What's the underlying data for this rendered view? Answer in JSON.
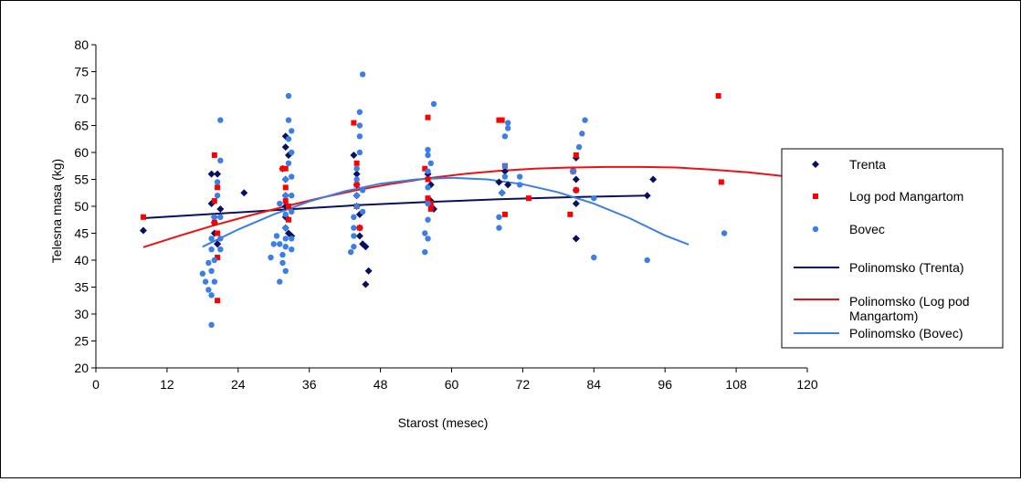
{
  "chart_data": {
    "type": "scatter",
    "xlabel": "Starost (mesec)",
    "ylabel": "Telesna masa (kg)",
    "xlim": [
      0,
      120
    ],
    "ylim": [
      20,
      80
    ],
    "xticks": [
      0,
      12,
      24,
      36,
      48,
      60,
      72,
      84,
      96,
      108,
      120
    ],
    "yticks": [
      20,
      25,
      30,
      35,
      40,
      45,
      50,
      55,
      60,
      65,
      70,
      75,
      80
    ],
    "grid": false,
    "legend_position": "right",
    "series": [
      {
        "name": "Trenta",
        "kind": "points",
        "marker": "diamond",
        "color": "#0a1060",
        "points": [
          [
            8,
            45.5
          ],
          [
            19.5,
            56
          ],
          [
            19.5,
            50.5
          ],
          [
            20,
            48
          ],
          [
            20,
            47
          ],
          [
            20,
            45
          ],
          [
            20.5,
            43
          ],
          [
            20.5,
            56
          ],
          [
            20.5,
            43
          ],
          [
            21,
            49.5
          ],
          [
            25,
            52.5
          ],
          [
            31.5,
            57
          ],
          [
            32,
            63
          ],
          [
            32,
            61
          ],
          [
            32,
            55
          ],
          [
            32,
            52
          ],
          [
            32,
            50
          ],
          [
            32,
            48
          ],
          [
            32,
            46
          ],
          [
            32.5,
            45
          ],
          [
            32.5,
            59.5
          ],
          [
            33,
            44.5
          ],
          [
            43.5,
            59.5
          ],
          [
            44,
            56
          ],
          [
            44,
            54
          ],
          [
            44,
            52
          ],
          [
            44,
            50
          ],
          [
            44.5,
            48.5
          ],
          [
            44.5,
            46
          ],
          [
            44.5,
            44.5
          ],
          [
            45,
            43
          ],
          [
            45.5,
            42.5
          ],
          [
            45.5,
            35.5
          ],
          [
            46,
            38
          ],
          [
            56,
            56
          ],
          [
            56.5,
            54
          ],
          [
            56.5,
            51
          ],
          [
            57,
            49.5
          ],
          [
            68,
            54.5
          ],
          [
            68.5,
            52.5
          ],
          [
            69,
            56.5
          ],
          [
            69.5,
            54
          ],
          [
            80.5,
            56.5
          ],
          [
            81,
            59
          ],
          [
            81,
            55
          ],
          [
            81,
            53
          ],
          [
            81,
            50.5
          ],
          [
            81,
            44
          ],
          [
            81,
            44
          ],
          [
            93,
            52
          ],
          [
            94,
            55
          ]
        ]
      },
      {
        "name": "Log pod Mangartom",
        "kind": "points",
        "marker": "square",
        "color": "#ff0000",
        "points": [
          [
            8,
            48
          ],
          [
            20,
            59.5
          ],
          [
            20,
            51
          ],
          [
            20,
            47
          ],
          [
            20.5,
            45
          ],
          [
            20.5,
            40.5
          ],
          [
            20.5,
            32.5
          ],
          [
            20.5,
            53.5
          ],
          [
            31.5,
            57
          ],
          [
            32,
            57
          ],
          [
            32,
            53.5
          ],
          [
            32,
            51
          ],
          [
            32.5,
            50
          ],
          [
            32.5,
            47.5
          ],
          [
            43.5,
            65.5
          ],
          [
            44,
            58
          ],
          [
            44,
            54
          ],
          [
            44,
            50
          ],
          [
            44.5,
            46
          ],
          [
            55.5,
            57
          ],
          [
            56,
            66.5
          ],
          [
            56,
            55
          ],
          [
            56,
            51.5
          ],
          [
            56.5,
            50.5
          ],
          [
            56.5,
            49.5
          ],
          [
            68,
            66
          ],
          [
            68.5,
            66
          ],
          [
            69,
            57.5
          ],
          [
            69,
            48.5
          ],
          [
            73,
            51.5
          ],
          [
            80,
            48.5
          ],
          [
            80.5,
            56.5
          ],
          [
            81,
            59.5
          ],
          [
            81,
            53
          ],
          [
            105,
            70.5
          ],
          [
            105.5,
            54.5
          ],
          [
            117,
            50.5
          ]
        ]
      },
      {
        "name": "Bovec",
        "kind": "points",
        "marker": "circle",
        "color": "#3a7ee6",
        "points": [
          [
            18,
            37.5
          ],
          [
            18.5,
            36
          ],
          [
            19,
            34.5
          ],
          [
            19,
            39.5
          ],
          [
            19.5,
            28
          ],
          [
            19.5,
            33.5
          ],
          [
            19.5,
            38
          ],
          [
            19.5,
            42
          ],
          [
            19.5,
            44
          ],
          [
            20,
            36
          ],
          [
            20,
            40
          ],
          [
            20,
            48
          ],
          [
            20.5,
            52
          ],
          [
            20.5,
            54.5
          ],
          [
            21,
            66
          ],
          [
            21,
            58.5
          ],
          [
            21,
            48
          ],
          [
            21,
            44
          ],
          [
            21,
            42
          ],
          [
            29.5,
            40.5
          ],
          [
            30,
            43
          ],
          [
            30.5,
            44.5
          ],
          [
            31,
            43
          ],
          [
            31,
            36
          ],
          [
            31,
            50.5
          ],
          [
            31.5,
            39.5
          ],
          [
            31.5,
            41
          ],
          [
            32,
            38
          ],
          [
            32,
            42.5
          ],
          [
            32,
            44
          ],
          [
            32,
            46
          ],
          [
            32,
            48.5
          ],
          [
            32,
            52
          ],
          [
            32,
            55
          ],
          [
            32.5,
            58
          ],
          [
            32.5,
            62.5
          ],
          [
            32.5,
            66
          ],
          [
            32.5,
            70.5
          ],
          [
            33,
            64
          ],
          [
            33,
            60
          ],
          [
            33,
            55.5
          ],
          [
            33,
            52
          ],
          [
            33,
            49
          ],
          [
            33,
            44
          ],
          [
            33,
            42
          ],
          [
            43,
            41.5
          ],
          [
            43.5,
            42.5
          ],
          [
            43.5,
            44.5
          ],
          [
            43.5,
            46
          ],
          [
            43.5,
            48
          ],
          [
            44,
            50
          ],
          [
            44,
            52
          ],
          [
            44,
            55
          ],
          [
            44,
            57
          ],
          [
            44.5,
            60
          ],
          [
            44.5,
            63
          ],
          [
            44.5,
            65
          ],
          [
            44.5,
            67.5
          ],
          [
            45,
            74.5
          ],
          [
            45,
            53
          ],
          [
            45,
            49
          ],
          [
            55.5,
            41.5
          ],
          [
            55.5,
            45
          ],
          [
            56,
            44
          ],
          [
            56,
            47.5
          ],
          [
            56,
            50.5
          ],
          [
            56,
            53.5
          ],
          [
            56,
            56.5
          ],
          [
            56,
            59.5
          ],
          [
            56,
            60.5
          ],
          [
            56.5,
            58
          ],
          [
            57,
            69
          ],
          [
            68,
            46
          ],
          [
            68,
            48
          ],
          [
            68.5,
            52.5
          ],
          [
            69,
            55.5
          ],
          [
            69,
            57.5
          ],
          [
            69,
            63
          ],
          [
            69.5,
            65.5
          ],
          [
            69.5,
            64.5
          ],
          [
            71.5,
            55.5
          ],
          [
            71.5,
            54
          ],
          [
            80.5,
            56.5
          ],
          [
            81.5,
            61
          ],
          [
            82,
            63.5
          ],
          [
            82.5,
            66
          ],
          [
            84,
            40.5
          ],
          [
            84,
            51.5
          ],
          [
            93,
            40
          ],
          [
            106,
            45
          ]
        ]
      },
      {
        "name": "Polinomsko (Trenta)",
        "kind": "trendline",
        "color": "#0a1060",
        "curve": [
          [
            8,
            47.8
          ],
          [
            20,
            48.6
          ],
          [
            32,
            49.4
          ],
          [
            44,
            50.2
          ],
          [
            56,
            50.8
          ],
          [
            68,
            51.3
          ],
          [
            80,
            51.7
          ],
          [
            93,
            52
          ]
        ]
      },
      {
        "name": "Polinomsko (Log pod Mangartom)",
        "kind": "trendline",
        "color": "#ee1111",
        "curve": [
          [
            8,
            42.4
          ],
          [
            14,
            44.5
          ],
          [
            20,
            46.5
          ],
          [
            26,
            48.3
          ],
          [
            32,
            50
          ],
          [
            38,
            51.6
          ],
          [
            44,
            53
          ],
          [
            50,
            54.2
          ],
          [
            56,
            55.2
          ],
          [
            62,
            56
          ],
          [
            68,
            56.6
          ],
          [
            74,
            57
          ],
          [
            80,
            57.2
          ],
          [
            86,
            57.3
          ],
          [
            92,
            57.3
          ],
          [
            98,
            57.2
          ],
          [
            104,
            56.8
          ],
          [
            110,
            56.3
          ],
          [
            117,
            55.5
          ]
        ]
      },
      {
        "name": "Polinomsko (Bovec)",
        "kind": "trendline",
        "color": "#3a7ee6",
        "curve": [
          [
            18,
            42.5
          ],
          [
            24,
            45.7
          ],
          [
            30,
            48.5
          ],
          [
            36,
            50.9
          ],
          [
            42,
            52.8
          ],
          [
            48,
            54.2
          ],
          [
            54,
            55
          ],
          [
            60,
            55.3
          ],
          [
            66,
            55
          ],
          [
            72,
            54.1
          ],
          [
            78,
            52.6
          ],
          [
            84,
            50.5
          ],
          [
            90,
            47.8
          ],
          [
            96,
            44.6
          ],
          [
            100,
            42.9
          ]
        ]
      }
    ]
  }
}
